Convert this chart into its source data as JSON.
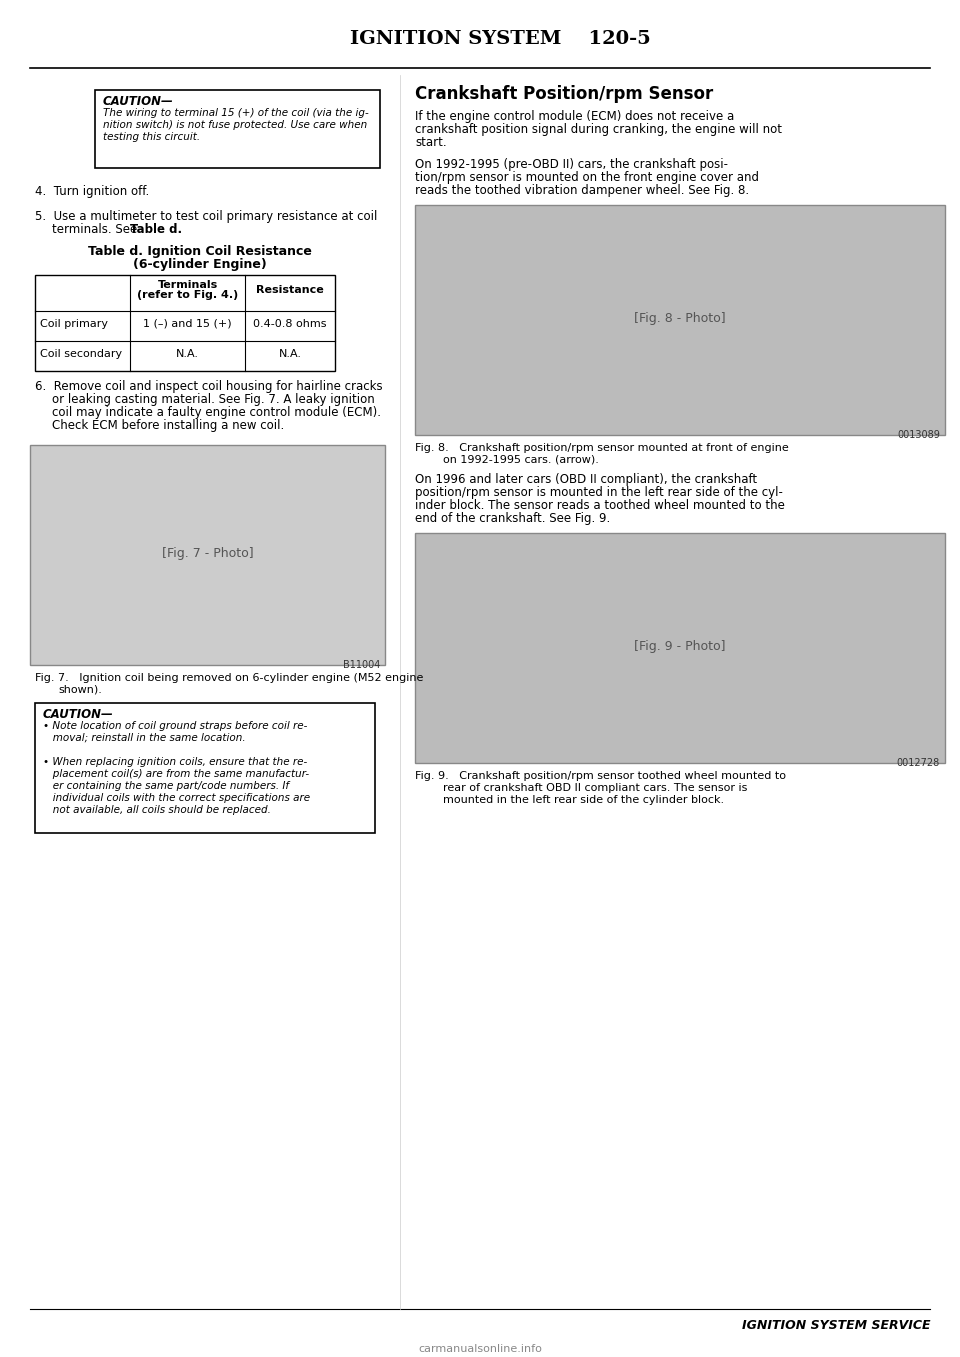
{
  "page_header_left": "IGNITION SYSTEM",
  "page_header_right": "120-5",
  "bg_color": "#ffffff",
  "caution_box_1": {
    "title": "CAUTION—",
    "lines": [
      "The wiring to terminal 15 (+) of the coil (via the ig-",
      "nition switch) is not fuse protected. Use care when",
      "testing this circuit."
    ]
  },
  "steps": [
    {
      "num": "4.",
      "text": "Turn ignition off."
    },
    {
      "num": "5.",
      "text": "Use a multimeter to test coil primary resistance at coil\nterminals. See Table d."
    }
  ],
  "table_title_line1": "Table d. Ignition Coil Resistance",
  "table_title_line2": "(6-cylinder Engine)",
  "table_headers": [
    "",
    "Terminals\n(refer to Fig. 4.)",
    "Resistance"
  ],
  "table_rows": [
    [
      "Coil primary",
      "1 (–) and 15 (+)",
      "0.4-0.8 ohms"
    ],
    [
      "Coil secondary",
      "N.A.",
      "N.A."
    ]
  ],
  "step6_text": "Remove coil and inspect coil housing for hairline cracks\nor leaking casting material. See Fig. 7. A leaky ignition\ncoil may indicate a faulty engine control module (ECM).\nCheck ECM before installing a new coil.",
  "fig7_caption": "Fig. 7.   Ignition coil being removed on 6-cylinder engine (M52 engine\n              shown).",
  "fig7_code": "B11004",
  "caution_box_2": {
    "title": "CAUTION—",
    "lines": [
      "• Note location of coil ground straps before coil re-",
      "   moval; reinstall in the same location.",
      "",
      "• When replacing ignition coils, ensure that the re-",
      "   placement coil(s) are from the same manufactur-",
      "   er containing the same part/code numbers. If",
      "   individual coils with the correct specifications are",
      "   not available, all coils should be replaced."
    ]
  },
  "right_col_heading": "Crankshaft Position/rpm Sensor",
  "right_col_para1": "If the engine control module (ECM) does not receive a\ncrankshaft position signal during cranking, the engine will not\nstart.",
  "right_col_para2": "On 1992-1995 (pre-OBD II) cars, the crankshaft posi-\ntion/rpm sensor is mounted on the front engine cover and\nreads the toothed vibration dampener wheel. See Fig. 8.",
  "fig8_code": "0013089",
  "fig8_caption": "Fig. 8.   Crankshaft position/rpm sensor mounted at front of engine\n              on 1992-1995 cars. (arrow).",
  "right_col_para3": "On 1996 and later cars (OBD II compliant), the crankshaft\nposition/rpm sensor is mounted in the left rear side of the cyl-\ninder block. The sensor reads a toothed wheel mounted to the\nend of the crankshaft. See Fig. 9.",
  "fig9_code": "0012728",
  "fig9_caption": "Fig. 9.   Crankshaft position/rpm sensor toothed wheel mounted to\n              rear of crankshaft OBD II compliant cars. The sensor is\n              mounted in the left rear side of the cylinder block.",
  "footer_text": "IGNITION SYSTEM SERVICE",
  "watermark": "carmanualsonline.info"
}
